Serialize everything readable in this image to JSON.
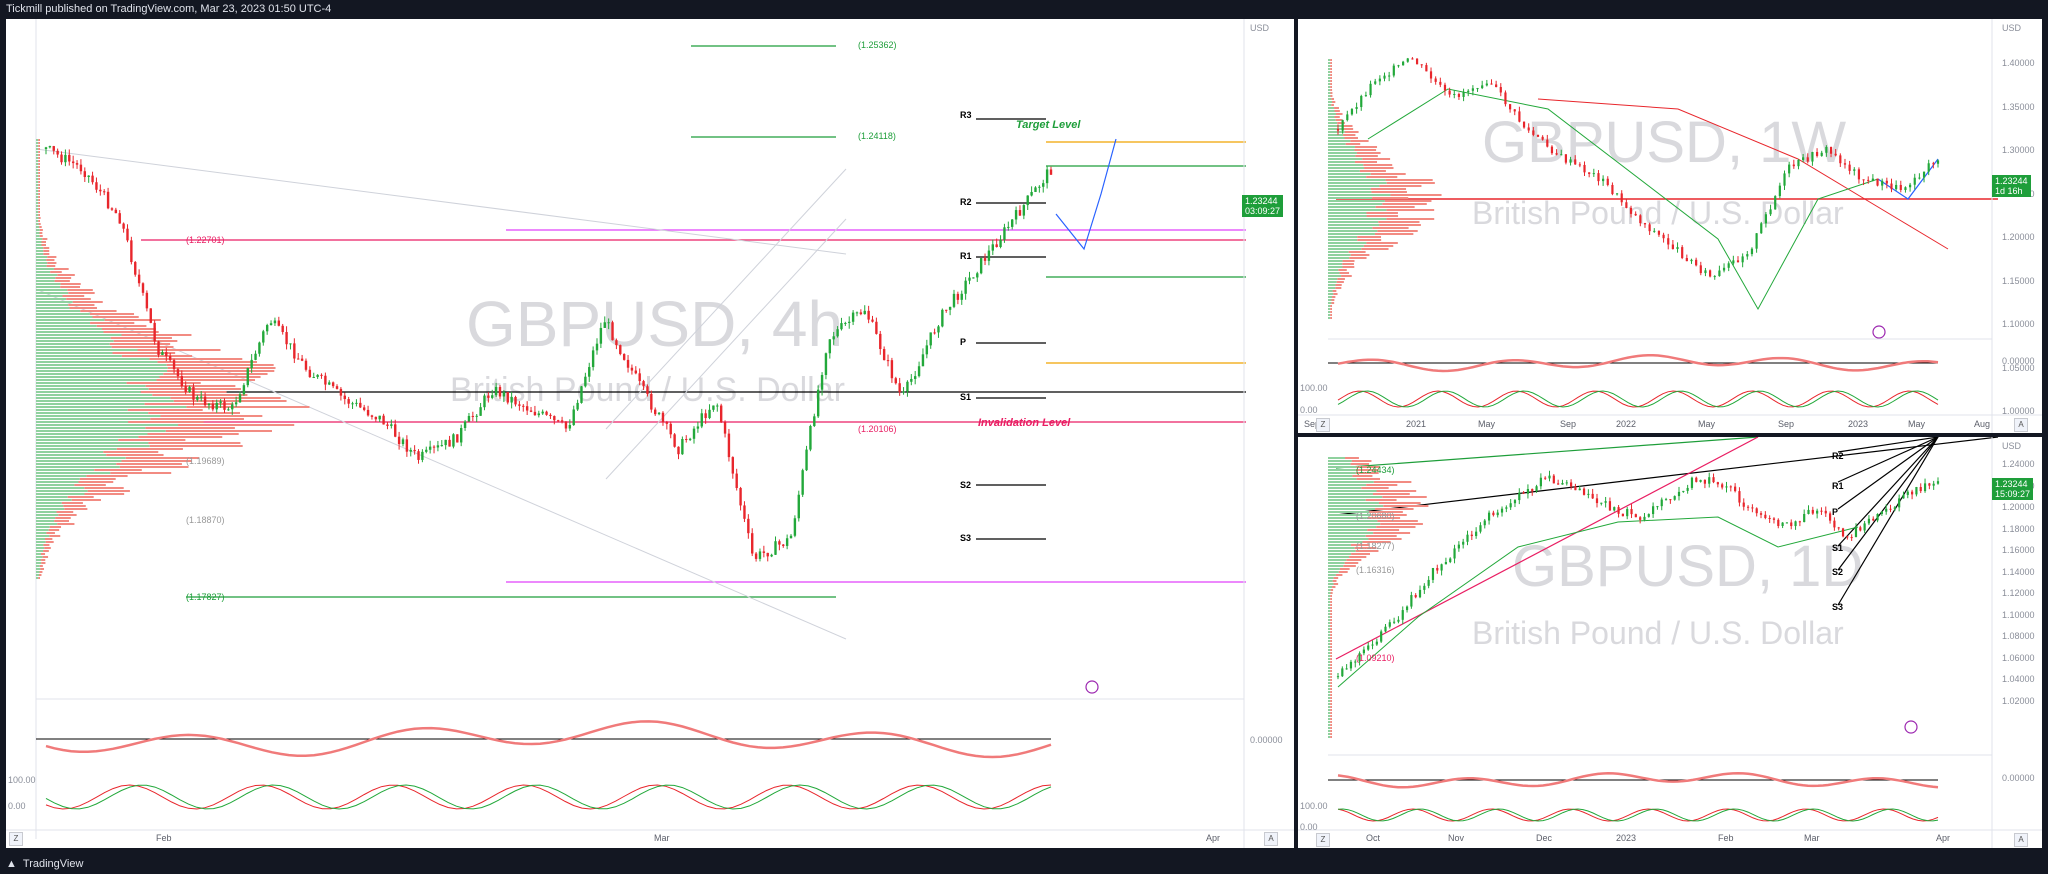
{
  "header": {
    "publish_text": "Tickmill published on TradingView.com, Mar 23, 2023 01:50 UTC-4"
  },
  "footer": {
    "brand": "TradingView"
  },
  "panes": {
    "h4": {
      "watermark_title": "GBPUSD, 4h",
      "watermark_sub": "British Pound / U.S. Dollar",
      "currency": "USD",
      "price_badge": "1.23244",
      "price_badge_sub": "03:09:27",
      "levels": {
        "l1": "(1.25362)",
        "l2": "(1.24118)",
        "l3": "(1.22701)",
        "l4": "(1.20106)",
        "l5": "(1.19689)",
        "l6": "(1.18870)",
        "l7": "(1.17827)"
      },
      "pivots": {
        "r3": "R3",
        "r2": "R2",
        "r1": "R1",
        "p": "P",
        "s1": "S1",
        "s2": "S2",
        "s3": "S3"
      },
      "notes": {
        "target": "Target Level",
        "invalidation": "Invalidation Level"
      },
      "time_labels": [
        "Feb",
        "Mar",
        "Apr"
      ],
      "indicator_labels": [
        "0.00000",
        "100.00",
        "0.00"
      ]
    },
    "w1": {
      "watermark_title": "GBPUSD, 1W",
      "watermark_sub": "British Pound / U.S. Dollar",
      "currency": "USD",
      "price_badge": "1.23244",
      "price_badge_sub": "1d 16h",
      "axis": [
        "1.40000",
        "1.35000",
        "1.30000",
        "1.25000",
        "1.20000",
        "1.15000",
        "1.10000",
        "1.05000",
        "1.00000"
      ],
      "time_labels": [
        "Sep",
        "2021",
        "May",
        "Sep",
        "2022",
        "May",
        "Sep",
        "2023",
        "May",
        "Aug"
      ],
      "indicator_labels": [
        "0.00000",
        "100.00",
        "0.00"
      ]
    },
    "d1": {
      "watermark_title": "GBPUSD, 1D",
      "watermark_sub": "British Pound / U.S. Dollar",
      "currency": "USD",
      "price_badge": "1.23244",
      "price_badge_sub": "15:09:27",
      "levels": {
        "l1": "(1.24434)",
        "l2": "(1.20680)",
        "l3": "(1.18277)",
        "l4": "(1.16316)",
        "l5": "(1.09210)"
      },
      "pivots": {
        "r2": "R2",
        "r1": "R1",
        "p": "P",
        "s1": "S1",
        "s2": "S2",
        "s3": "S3"
      },
      "axis": [
        "1.24000",
        "1.22000",
        "1.20000",
        "1.18000",
        "1.16000",
        "1.14000",
        "1.12000",
        "1.10000",
        "1.08000",
        "1.06000",
        "1.04000",
        "1.02000"
      ],
      "time_labels": [
        "Oct",
        "Nov",
        "Dec",
        "2023",
        "Feb",
        "Mar",
        "Apr"
      ],
      "indicator_labels": [
        "0.00000",
        "100.00",
        "0.00"
      ]
    }
  }
}
